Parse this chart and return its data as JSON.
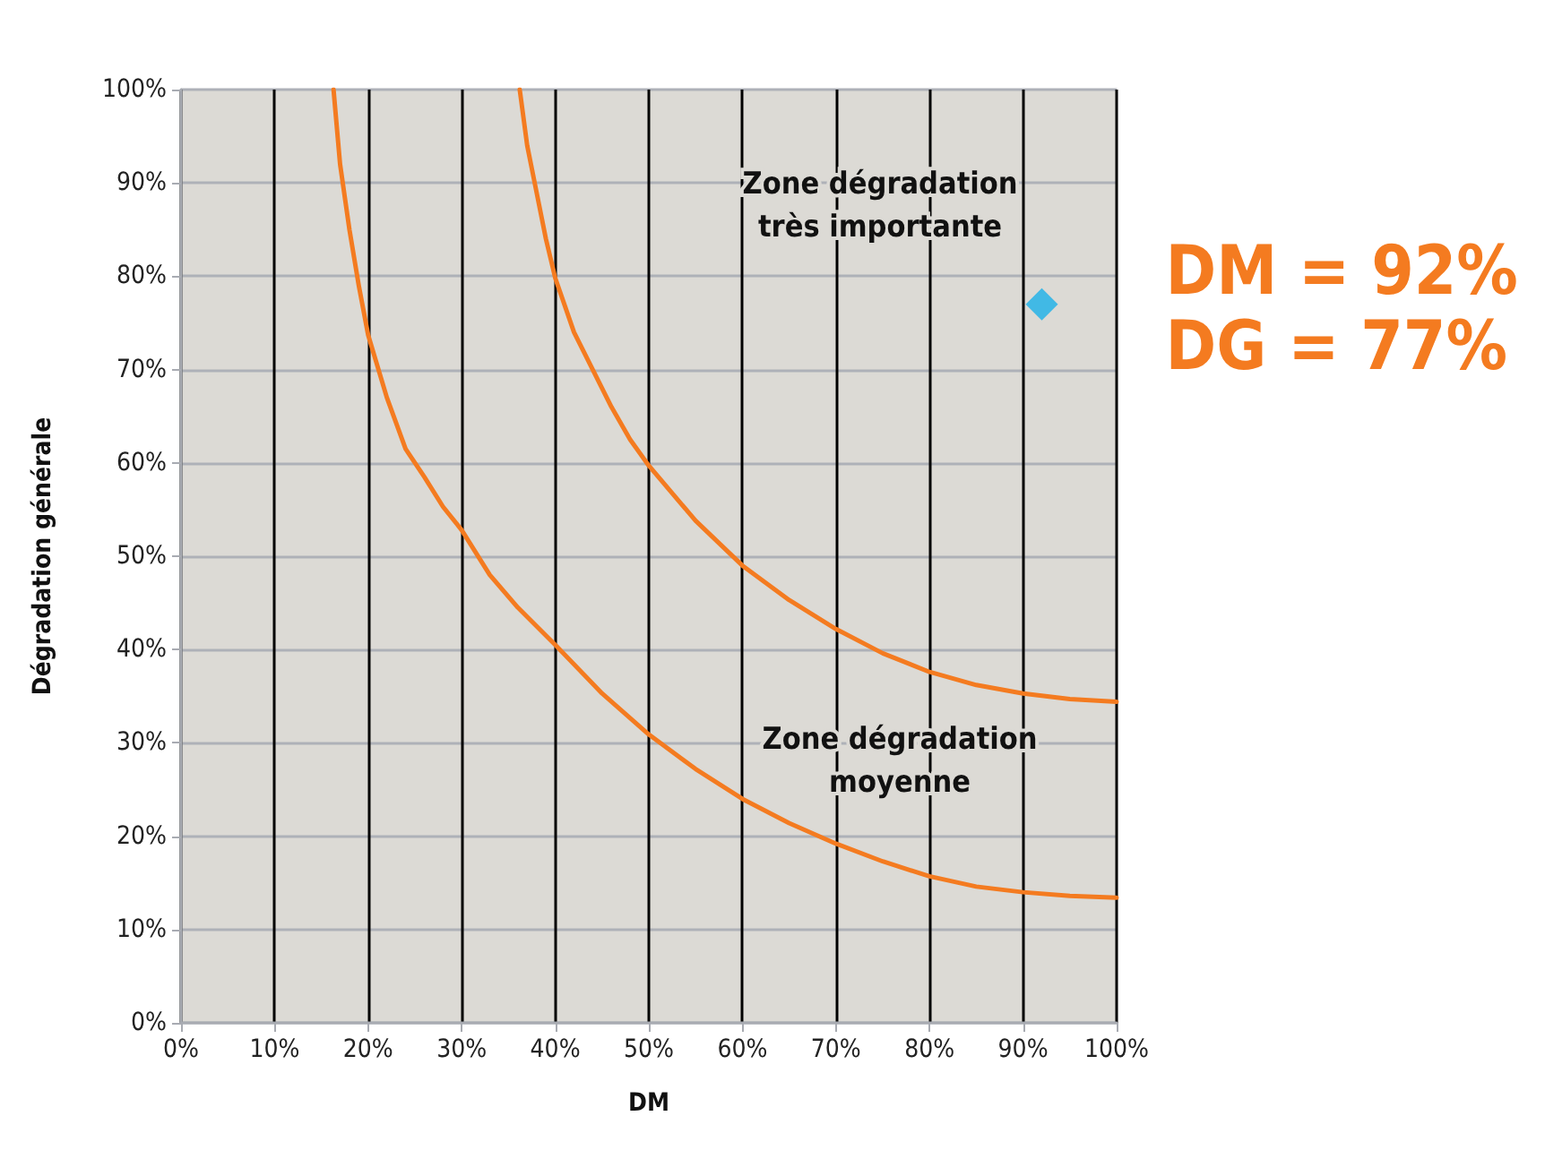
{
  "chart_data": {
    "type": "line",
    "xlabel": "DM",
    "ylabel": "Dégradation générale",
    "xlim": [
      0,
      100
    ],
    "ylim": [
      0,
      100
    ],
    "xticks": [
      {
        "value": 0,
        "label": "0%"
      },
      {
        "value": 10,
        "label": "10%"
      },
      {
        "value": 20,
        "label": "20%"
      },
      {
        "value": 30,
        "label": "30%"
      },
      {
        "value": 40,
        "label": "40%"
      },
      {
        "value": 50,
        "label": "50%"
      },
      {
        "value": 60,
        "label": "60%"
      },
      {
        "value": 70,
        "label": "70%"
      },
      {
        "value": 80,
        "label": "80%"
      },
      {
        "value": 90,
        "label": "90%"
      },
      {
        "value": 100,
        "label": "100%"
      }
    ],
    "yticks": [
      {
        "value": 0,
        "label": "0%"
      },
      {
        "value": 10,
        "label": "10%"
      },
      {
        "value": 20,
        "label": "20%"
      },
      {
        "value": 30,
        "label": "30%"
      },
      {
        "value": 40,
        "label": "40%"
      },
      {
        "value": 50,
        "label": "50%"
      },
      {
        "value": 60,
        "label": "60%"
      },
      {
        "value": 70,
        "label": "70%"
      },
      {
        "value": 80,
        "label": "80%"
      },
      {
        "value": 90,
        "label": "90%"
      },
      {
        "value": 100,
        "label": "100%"
      }
    ],
    "grid": true,
    "marker": "none",
    "line_style": "solid",
    "series": [
      {
        "color": "#f47b20",
        "x": [
          16.3,
          17,
          18,
          19,
          20,
          22,
          24,
          26,
          28,
          30,
          33,
          36,
          40,
          45,
          50,
          55,
          60,
          65,
          70,
          75,
          80,
          85,
          90,
          95,
          100
        ],
        "values": [
          100,
          92,
          85,
          79,
          73.7,
          67,
          61.5,
          58.5,
          55.3,
          52.8,
          48,
          44.5,
          40.5,
          35.3,
          30.9,
          27.2,
          24,
          21.4,
          19.2,
          17.3,
          15.7,
          14.6,
          14,
          13.6,
          13.4
        ]
      },
      {
        "color": "#f47b20",
        "x": [
          36.2,
          37,
          38,
          39,
          40,
          42,
          44,
          46,
          48,
          50,
          55,
          60,
          65,
          70,
          75,
          80,
          85,
          90,
          95,
          100
        ],
        "values": [
          100,
          94,
          89,
          84,
          79.8,
          74,
          70,
          66,
          62.5,
          59.7,
          53.8,
          49,
          45.3,
          42.2,
          39.6,
          37.6,
          36.2,
          35.3,
          34.7,
          34.4
        ]
      },
      {
        "type": "scatter",
        "marker": "diamond",
        "color": "#1ab0e8",
        "x": [
          92
        ],
        "values": [
          77
        ]
      }
    ],
    "annotations": [
      "Zone dégradation\ntrès importante",
      "Zone dégradation\nmoyenne",
      {
        "text": "DM = 92%\nDG = 77%",
        "x": 92,
        "y": 77
      }
    ]
  }
}
